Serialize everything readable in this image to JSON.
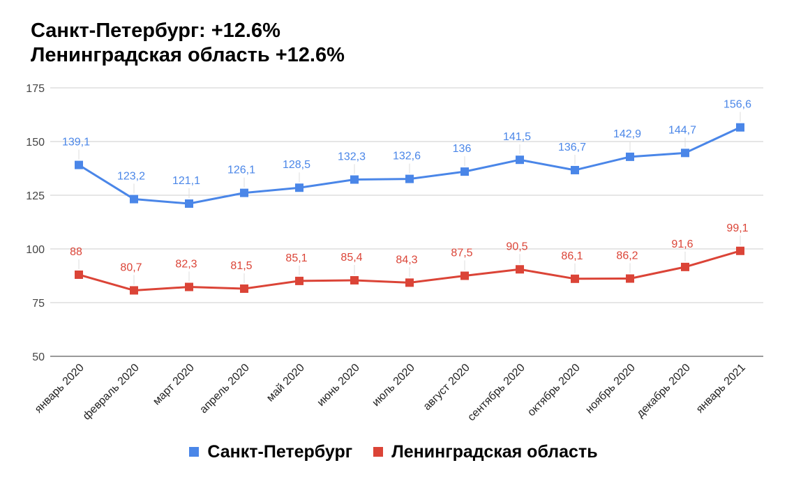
{
  "chart_data": {
    "type": "line",
    "title_lines": [
      "Санкт-Петербург: +12.6%",
      "Ленинградская область +12.6%"
    ],
    "categories": [
      "январь 2020",
      "февраль 2020",
      "март 2020",
      "апрель 2020",
      "май 2020",
      "июнь 2020",
      "июль 2020",
      "август 2020",
      "сентябрь 2020",
      "октябрь 2020",
      "ноябрь 2020",
      "декабрь 2020",
      "январь 2021"
    ],
    "series": [
      {
        "name": "Санкт-Петербург",
        "color": "#4a86e8",
        "values": [
          139.1,
          123.2,
          121.1,
          126.1,
          128.5,
          132.3,
          132.6,
          136,
          141.5,
          136.7,
          142.9,
          144.7,
          156.6
        ],
        "labels": [
          "139,1",
          "123,2",
          "121,1",
          "126,1",
          "128,5",
          "132,3",
          "132,6",
          "136",
          "141,5",
          "136,7",
          "142,9",
          "144,7",
          "156,6"
        ]
      },
      {
        "name": "Ленинградская область",
        "color": "#db4437",
        "values": [
          88,
          80.7,
          82.3,
          81.5,
          85.1,
          85.4,
          84.3,
          87.5,
          90.5,
          86.1,
          86.2,
          91.6,
          99.1
        ],
        "labels": [
          "88",
          "80,7",
          "82,3",
          "81,5",
          "85,1",
          "85,4",
          "84,3",
          "87,5",
          "90,5",
          "86,1",
          "86,2",
          "91,6",
          "99,1"
        ]
      }
    ],
    "ylim": [
      50,
      175
    ],
    "yticks": [
      "50",
      "75",
      "100",
      "125",
      "150",
      "175"
    ],
    "grid": true,
    "legend_position": "bottom"
  }
}
